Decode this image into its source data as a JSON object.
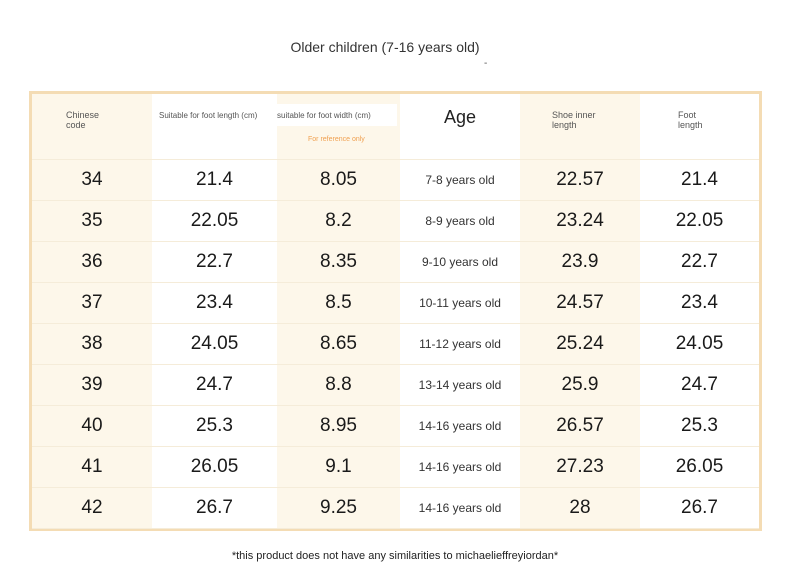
{
  "title": "Older children (7-16 years old)",
  "title_mark": "-",
  "headers": {
    "chinese_code": "Chinese\ncode",
    "foot_length_cm": "Suitable for foot length (cm)",
    "foot_width_cm": "suitable for foot width (cm)",
    "reference_note": "For reference only",
    "age": "Age",
    "shoe_inner_length": "Shoe inner\nlength",
    "foot_length": "Foot\nlength"
  },
  "rows": [
    {
      "code": "34",
      "foot_length_cm": "21.4",
      "foot_width_cm": "8.05",
      "age": "7-8 years old",
      "shoe_inner_length": "22.57",
      "foot_length": "21.4"
    },
    {
      "code": "35",
      "foot_length_cm": "22.05",
      "foot_width_cm": "8.2",
      "age": "8-9 years old",
      "shoe_inner_length": "23.24",
      "foot_length": "22.05"
    },
    {
      "code": "36",
      "foot_length_cm": "22.7",
      "foot_width_cm": "8.35",
      "age": "9-10 years old",
      "shoe_inner_length": "23.9",
      "foot_length": "22.7"
    },
    {
      "code": "37",
      "foot_length_cm": "23.4",
      "foot_width_cm": "8.5",
      "age": "10-11 years old",
      "shoe_inner_length": "24.57",
      "foot_length": "23.4"
    },
    {
      "code": "38",
      "foot_length_cm": "24.05",
      "foot_width_cm": "8.65",
      "age": "11-12 years old",
      "shoe_inner_length": "25.24",
      "foot_length": "24.05"
    },
    {
      "code": "39",
      "foot_length_cm": "24.7",
      "foot_width_cm": "8.8",
      "age": "13-14 years old",
      "shoe_inner_length": "25.9",
      "foot_length": "24.7"
    },
    {
      "code": "40",
      "foot_length_cm": "25.3",
      "foot_width_cm": "8.95",
      "age": "14-16 years old",
      "shoe_inner_length": "26.57",
      "foot_length": "25.3"
    },
    {
      "code": "41",
      "foot_length_cm": "26.05",
      "foot_width_cm": "9.1",
      "age": "14-16 years old",
      "shoe_inner_length": "27.23",
      "foot_length": "26.05"
    },
    {
      "code": "42",
      "foot_length_cm": "26.7",
      "foot_width_cm": "9.25",
      "age": "14-16 years old",
      "shoe_inner_length": "28",
      "foot_length": "26.7"
    }
  ],
  "footer": "*this product does not have any similarities to michaelieffreyiordan*",
  "colors": {
    "frame_border": "#f4dcb4",
    "cream_column": "#fdf7ea",
    "reference_note": "#f0a050"
  }
}
